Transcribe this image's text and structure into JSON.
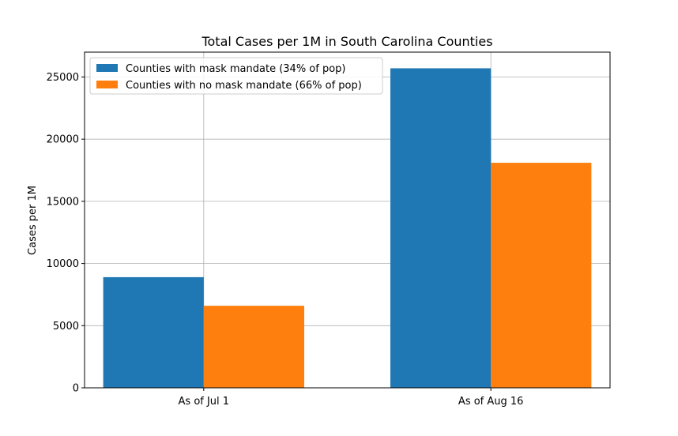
{
  "chart_data": {
    "type": "bar",
    "title": "Total Cases per 1M in South Carolina Counties",
    "xlabel": "",
    "ylabel": "Cases per 1M",
    "categories": [
      "As of Jul 1",
      "As of Aug 16"
    ],
    "series": [
      {
        "name": "Counties with mask mandate (34% of pop)",
        "values": [
          8900,
          25700
        ],
        "color": "#1f77b4"
      },
      {
        "name": "Counties with no mask mandate (66% of pop)",
        "values": [
          6600,
          18100
        ],
        "color": "#ff7f0e"
      }
    ],
    "ylim": [
      0,
      27000
    ],
    "yticks": [
      0,
      5000,
      10000,
      15000,
      20000,
      25000
    ],
    "grid": true,
    "legend_position": "top-left"
  }
}
